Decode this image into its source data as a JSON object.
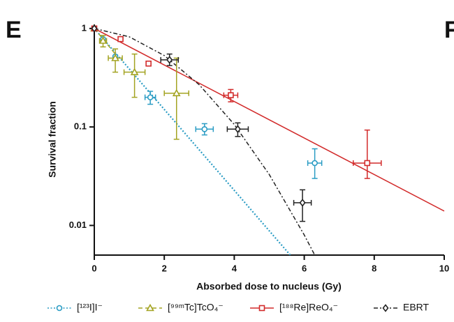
{
  "chart_data": {
    "type": "scatter",
    "panel_label": "E",
    "next_panel_label": "F",
    "x_label": "Absorbed dose to nucleus (Gy)",
    "y_label": "Survival fraction",
    "xlim": [
      0,
      10
    ],
    "xticks": [
      0,
      2,
      4,
      6,
      8,
      10
    ],
    "ylim": [
      0.005,
      1.1
    ],
    "yticks": [
      0.01,
      0.1,
      1
    ],
    "y_scale": "log",
    "series": [
      {
        "name": "[¹²³I]I⁻",
        "color": "#2a9cc4",
        "marker": "circle",
        "line_style": "dotted",
        "x": [
          0,
          0.25,
          0.6,
          1.6,
          3.15,
          6.3
        ],
        "values": [
          1,
          0.78,
          0.52,
          0.2,
          0.095,
          0.043
        ],
        "x_err": [
          null,
          null,
          null,
          0.15,
          0.25,
          0.2
        ],
        "y_low": [
          null,
          null,
          null,
          0.17,
          0.083,
          0.03
        ],
        "y_high": [
          null,
          null,
          null,
          0.23,
          0.108,
          0.06
        ],
        "fit": {
          "x": [
            0,
            5.6
          ],
          "values": [
            1,
            0.005
          ]
        }
      },
      {
        "name": "[⁹⁹ᵐTc]TcO₄⁻",
        "color": "#a3a321",
        "marker": "triangle",
        "line_style": "dashed",
        "x": [
          0,
          0.25,
          0.6,
          1.15,
          2.35
        ],
        "values": [
          1,
          0.75,
          0.5,
          0.36,
          0.22
        ],
        "x_err": [
          null,
          0.1,
          0.2,
          0.3,
          0.35
        ],
        "y_low": [
          null,
          0.65,
          0.36,
          0.2,
          0.075
        ],
        "y_high": [
          null,
          0.85,
          0.62,
          0.55,
          0.5
        ],
        "fit": {
          "x": [
            0,
            0.6
          ],
          "values": [
            1,
            0.55
          ]
        }
      },
      {
        "name": "[¹⁸⁸Re]ReO₄⁻",
        "color": "#d22a2a",
        "marker": "square",
        "line_style": "solid",
        "x": [
          0,
          0.75,
          1.55,
          3.9,
          7.8
        ],
        "values": [
          1,
          0.78,
          0.44,
          0.21,
          0.043
        ],
        "x_err": [
          null,
          null,
          null,
          0.2,
          0.4
        ],
        "y_low": [
          null,
          null,
          null,
          0.18,
          0.03
        ],
        "y_high": [
          null,
          null,
          null,
          0.24,
          0.093
        ],
        "fit": {
          "x": [
            0,
            10
          ],
          "values": [
            1,
            0.014
          ]
        }
      },
      {
        "name": "EBRT",
        "color": "#222222",
        "marker": "diamond",
        "line_style": "dashdot",
        "x": [
          0,
          2.15,
          4.1,
          5.95
        ],
        "values": [
          1,
          0.48,
          0.095,
          0.017
        ],
        "x_err": [
          null,
          0.25,
          0.3,
          0.25
        ],
        "y_low": [
          null,
          0.42,
          0.08,
          0.011
        ],
        "y_high": [
          null,
          0.55,
          0.11,
          0.023
        ],
        "fit": {
          "x": [
            0,
            1,
            2,
            3,
            4,
            5,
            6,
            6.3
          ],
          "values": [
            1,
            0.823,
            0.531,
            0.268,
            0.106,
            0.0329,
            0.008,
            0.005
          ]
        }
      }
    ]
  }
}
